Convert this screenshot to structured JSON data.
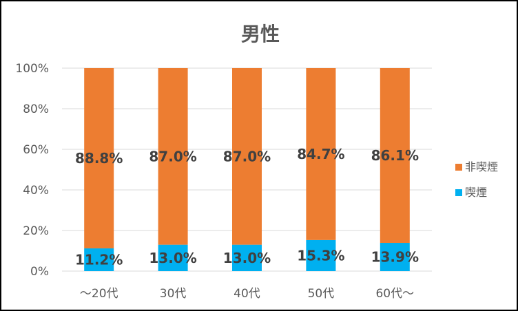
{
  "chart_data": {
    "type": "bar",
    "stacked": true,
    "title": "男性",
    "categories": [
      "～20代",
      "30代",
      "40代",
      "50代",
      "60代～"
    ],
    "series": [
      {
        "name": "喫煙",
        "color": "#00b0f0",
        "values": [
          11.2,
          13.0,
          13.0,
          15.3,
          13.9
        ],
        "labels": [
          "11.2%",
          "13.0%",
          "13.0%",
          "15.3%",
          "13.9%"
        ]
      },
      {
        "name": "非喫煙",
        "color": "#ed7d31",
        "values": [
          88.8,
          87.0,
          87.0,
          84.7,
          86.1
        ],
        "labels": [
          "88.8%",
          "87.0%",
          "87.0%",
          "84.7%",
          "86.1%"
        ]
      }
    ],
    "yticks": [
      "0%",
      "20%",
      "40%",
      "60%",
      "80%",
      "100%"
    ],
    "ylim": [
      0,
      100
    ],
    "grid": true,
    "legend_position": "right",
    "legend_order": [
      "非喫煙",
      "喫煙"
    ]
  }
}
